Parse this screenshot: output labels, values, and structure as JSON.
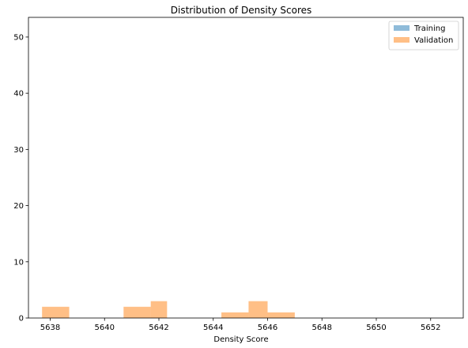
{
  "chart_data": {
    "type": "bar",
    "title": "Distribution of Density Scores",
    "xlabel": "Density Score",
    "ylabel": "",
    "xlim": [
      5637.2,
      5653.2
    ],
    "ylim": [
      0,
      53.5
    ],
    "x_ticks": [
      5638,
      5640,
      5642,
      5644,
      5646,
      5648,
      5650,
      5652
    ],
    "y_ticks": [
      0,
      10,
      20,
      30,
      40,
      50
    ],
    "legend_position": "top-right",
    "grid": false,
    "series": [
      {
        "name": "Training",
        "color": "#1f77b4",
        "opacity": 0.5,
        "bins": []
      },
      {
        "name": "Validation",
        "color": "#ff7f0e",
        "opacity": 0.5,
        "bins": [
          {
            "x0": 5637.7,
            "x1": 5638.7,
            "count": 2
          },
          {
            "x0": 5640.7,
            "x1": 5641.7,
            "count": 2
          },
          {
            "x0": 5641.7,
            "x1": 5642.3,
            "count": 3
          },
          {
            "x0": 5644.3,
            "x1": 5645.3,
            "count": 1
          },
          {
            "x0": 5645.3,
            "x1": 5646.0,
            "count": 3
          },
          {
            "x0": 5646.0,
            "x1": 5647.0,
            "count": 1
          }
        ]
      }
    ]
  }
}
